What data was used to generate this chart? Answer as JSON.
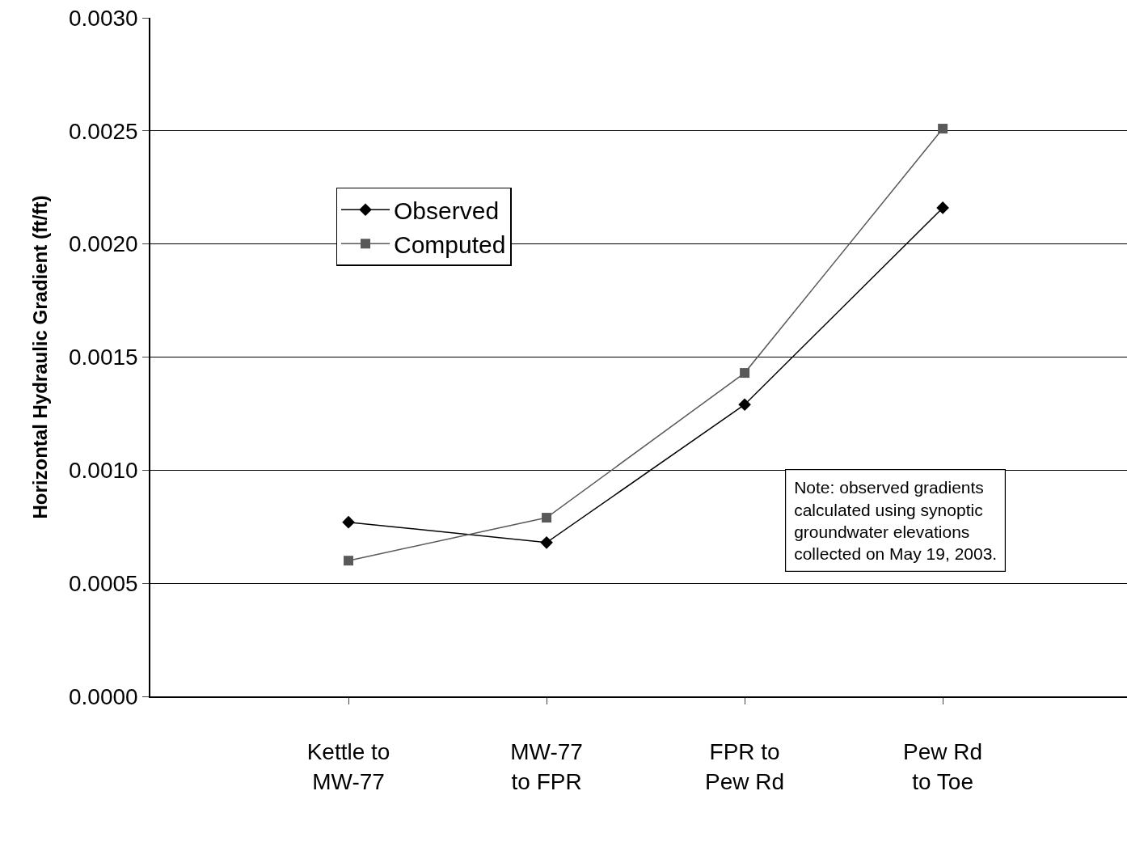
{
  "chart_data": {
    "type": "line",
    "ylabel": "Horizontal Hydraulic Gradient (ft/ft)",
    "categories": [
      "Kettle to\nMW-77",
      "MW-77\nto FPR",
      "FPR to\nPew Rd",
      "Pew Rd\nto Toe"
    ],
    "series": [
      {
        "name": "Observed",
        "color": "#000000",
        "marker": "diamond",
        "values": [
          0.00077,
          0.00068,
          0.00129,
          0.00216
        ]
      },
      {
        "name": "Computed",
        "color": "#595959",
        "marker": "square",
        "values": [
          0.0006,
          0.00079,
          0.00143,
          0.00251
        ]
      }
    ],
    "ylim": [
      0,
      0.003
    ],
    "yticks": [
      {
        "value": 0,
        "label": "0.0000"
      },
      {
        "value": 0.0005,
        "label": "0.0005"
      },
      {
        "value": 0.001,
        "label": "0.0010"
      },
      {
        "value": 0.0015,
        "label": "0.0015"
      },
      {
        "value": 0.002,
        "label": "0.0020"
      },
      {
        "value": 0.0025,
        "label": "0.0025"
      },
      {
        "value": 0.003,
        "label": "0.0030"
      }
    ],
    "grid": "y",
    "legend": "top left",
    "line_style": "solid",
    "annotations": [
      "Note: observed gradients\ncalculated using synoptic\ngroundwater elevations\ncollected on May 19, 2003."
    ]
  }
}
